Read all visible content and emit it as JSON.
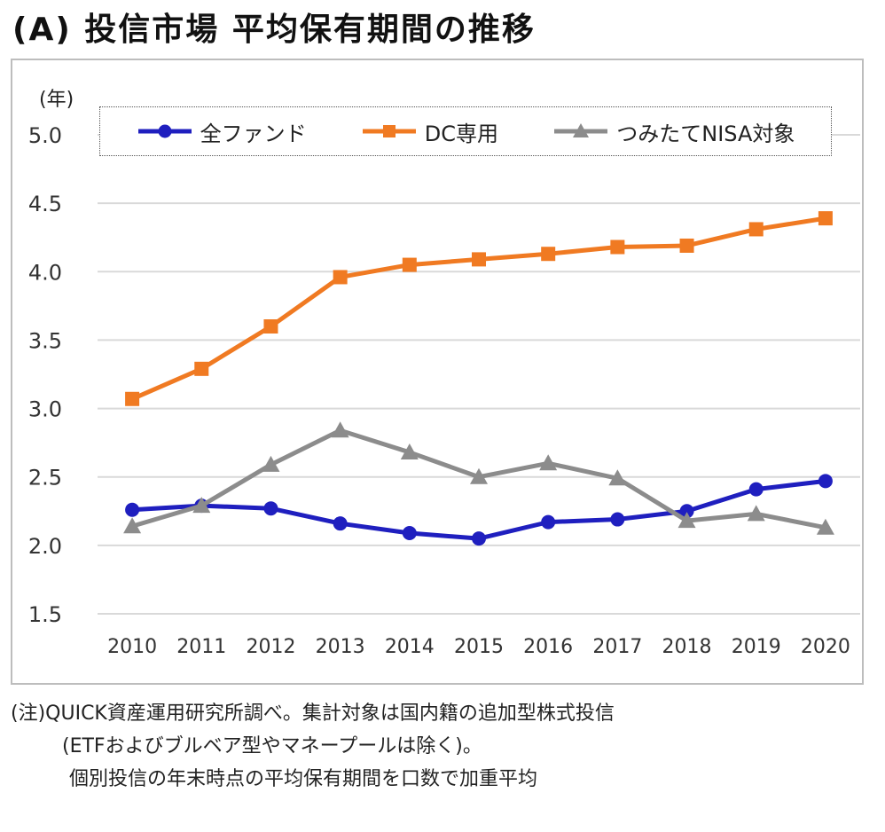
{
  "title": "(A) 投信市場 平均保有期間の推移",
  "chart_data": {
    "type": "line",
    "title": "(A) 投信市場 平均保有期間の推移",
    "ylabel": "(年)",
    "xlabel": "",
    "ylim": [
      1.5,
      5.0
    ],
    "yticks": [
      "5.0",
      "4.5",
      "4.0",
      "3.5",
      "3.0",
      "2.5",
      "2.0",
      "1.5"
    ],
    "ytick_values": [
      5.0,
      4.5,
      4.0,
      3.5,
      3.0,
      2.5,
      2.0,
      1.5
    ],
    "categories": [
      "2010",
      "2011",
      "2012",
      "2013",
      "2014",
      "2015",
      "2016",
      "2017",
      "2018",
      "2019",
      "2020"
    ],
    "legend_position": "top",
    "grid": true,
    "series": [
      {
        "name": "全ファンド",
        "color": "#1f1fbf",
        "marker": "circle",
        "values": [
          2.26,
          2.29,
          2.27,
          2.16,
          2.09,
          2.05,
          2.17,
          2.19,
          2.25,
          2.41,
          2.47
        ]
      },
      {
        "name": "DC専用",
        "color": "#f07a22",
        "marker": "square",
        "values": [
          3.07,
          3.29,
          3.6,
          3.96,
          4.05,
          4.09,
          4.13,
          4.18,
          4.19,
          4.31,
          4.39
        ]
      },
      {
        "name": "つみたてNISA対象",
        "color": "#8c8c8c",
        "marker": "triangle",
        "values": [
          2.14,
          2.29,
          2.59,
          2.84,
          2.68,
          2.5,
          2.6,
          2.49,
          2.18,
          2.23,
          2.13
        ]
      }
    ]
  },
  "notes": [
    "(注)QUICK資産運用研究所調べ。集計対象は国内籍の追加型株式投信",
    "(ETFおよびブルベア型やマネープールは除く)。",
    "個別投信の年末時点の平均保有期間を口数で加重平均"
  ]
}
